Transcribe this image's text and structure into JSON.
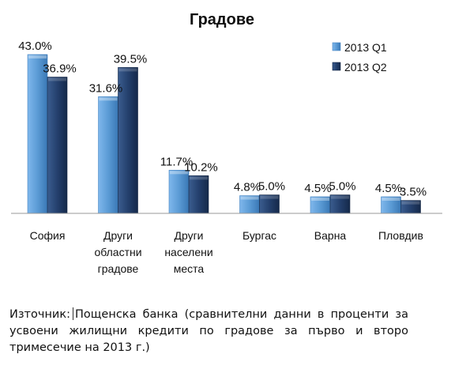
{
  "chart_data": {
    "type": "bar",
    "title": "Градове",
    "categories": [
      "София",
      "Други областни градове",
      "Други населени места",
      "Бургас",
      "Варна",
      "Пловдив"
    ],
    "category_lines": [
      [
        "София"
      ],
      [
        "Други",
        "областни",
        "градове"
      ],
      [
        "Други",
        "населени",
        "места"
      ],
      [
        "Бургас"
      ],
      [
        "Варна"
      ],
      [
        "Пловдив"
      ]
    ],
    "series": [
      {
        "name": "2013 Q1",
        "values": [
          43.0,
          31.6,
          11.7,
          4.8,
          4.5,
          4.5
        ],
        "labels": [
          "43.0%",
          "31.6%",
          "11.7%",
          "4.8%",
          "4.5%",
          "4.5%"
        ],
        "color": "#5b9bd5"
      },
      {
        "name": "2013 Q2",
        "values": [
          36.9,
          39.5,
          10.2,
          5.0,
          5.0,
          3.5
        ],
        "labels": [
          "36.9%",
          "39.5%",
          "10.2%",
          "5.0%",
          "5.0%",
          "3.5%"
        ],
        "color": "#1f3864"
      }
    ],
    "ylim": [
      0,
      43.0
    ],
    "grid": false,
    "legend": "top-right"
  },
  "source": {
    "label": "Източник:",
    "text": "Пощенска банка (сравнителни данни в проценти за усвоени жилищни кредити по градове за първо и второ тримесечие на  2013 г.)"
  }
}
